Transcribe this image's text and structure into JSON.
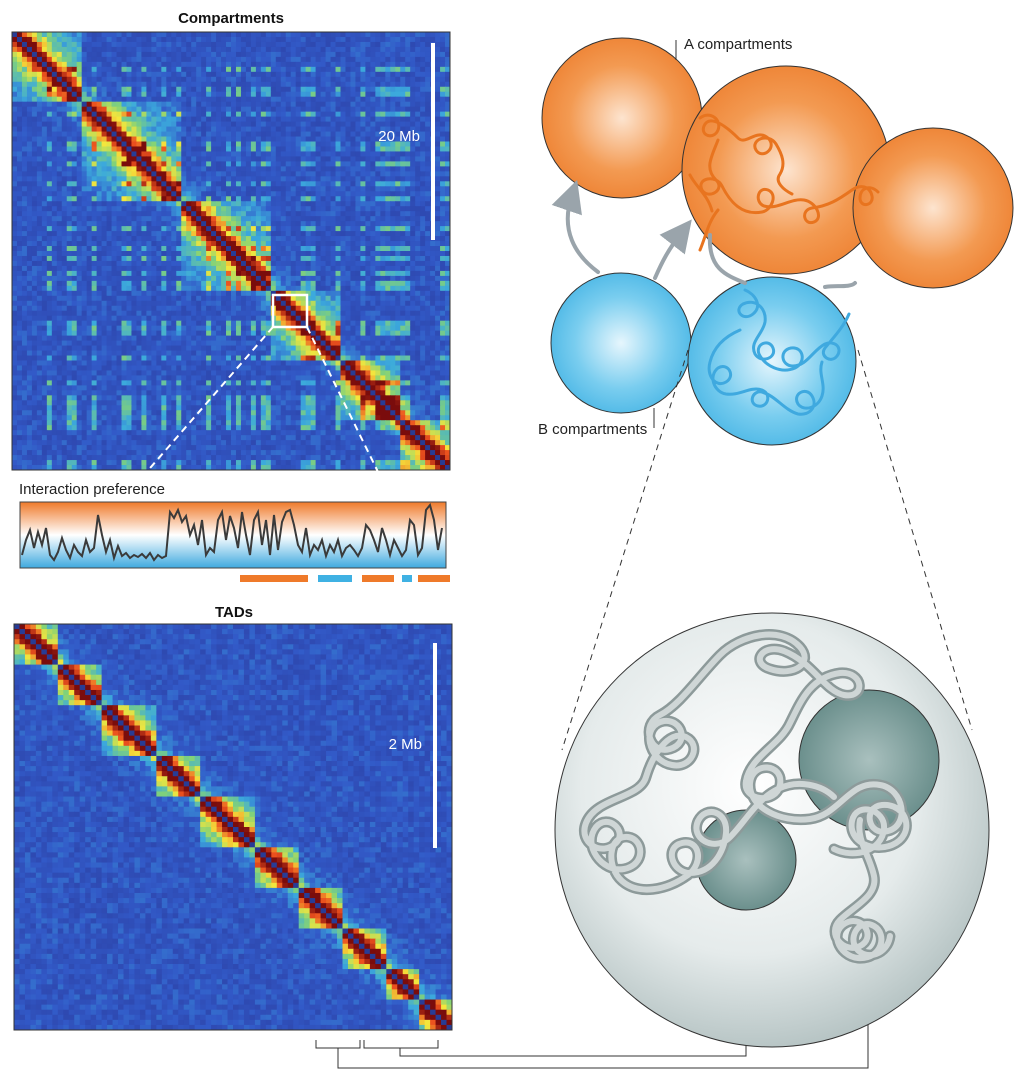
{
  "panels": {
    "compartments_map": {
      "title": "Compartments",
      "scale_label": "20 Mb"
    },
    "interaction_track": {
      "title": "Interaction preference"
    },
    "tads_map": {
      "title": "TADs",
      "scale_label": "2 Mb"
    }
  },
  "labels": {
    "a_compartments": "A compartments",
    "b_compartments": "B compartments"
  },
  "colors": {
    "a_compartment": "#f0883a",
    "b_compartment": "#57bde6",
    "heatmap_low": "#2b3a9c",
    "heatmap_high": "#7a0c0c",
    "tad_domain": "#6f9491",
    "nucleus": "#d9e2e2"
  }
}
